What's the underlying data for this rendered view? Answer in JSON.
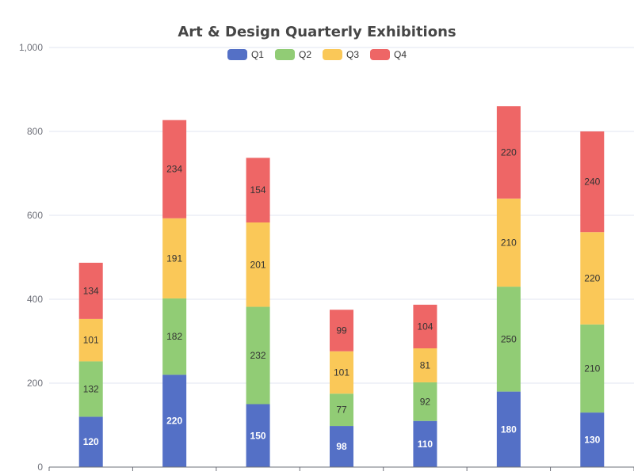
{
  "chart_data": {
    "type": "bar",
    "stacked": true,
    "title": "Art & Design Quarterly Exhibitions",
    "xlabel": "",
    "ylabel": "",
    "ylim": [
      0,
      1000
    ],
    "yticks": [
      "0",
      "200",
      "400",
      "600",
      "800",
      "1,000"
    ],
    "categories": [
      "",
      "",
      "",
      "",
      "",
      "",
      ""
    ],
    "legend_position": "top-center",
    "grid": true,
    "series": [
      {
        "name": "Q1",
        "color": "#5470c6",
        "label_color": "#ffffff",
        "values": [
          120,
          220,
          150,
          98,
          110,
          180,
          130
        ]
      },
      {
        "name": "Q2",
        "color": "#91cc75",
        "label_color": "#333333",
        "values": [
          132,
          182,
          232,
          77,
          92,
          250,
          210
        ]
      },
      {
        "name": "Q3",
        "color": "#fac858",
        "label_color": "#333333",
        "values": [
          101,
          191,
          201,
          101,
          81,
          210,
          220
        ]
      },
      {
        "name": "Q4",
        "color": "#ee6666",
        "label_color": "#333333",
        "values": [
          134,
          234,
          154,
          99,
          104,
          220,
          240
        ]
      }
    ]
  }
}
